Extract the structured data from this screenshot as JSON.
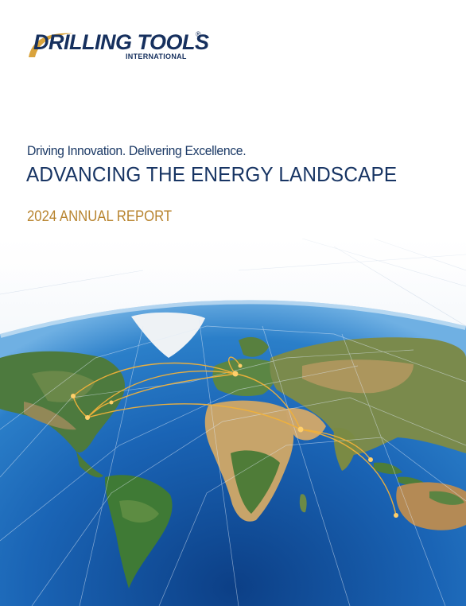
{
  "logo": {
    "name": "DRILLING TOOLS",
    "registered_mark": "®",
    "subtitle": "INTERNATIONAL",
    "brand_color": "#16305e",
    "accent_color": "#d4a23a"
  },
  "cover": {
    "tagline": "Driving Innovation. Delivering Excellence.",
    "headline": "ADVANCING THE ENERGY LANDSCAPE",
    "report_label": "2024 ANNUAL REPORT",
    "headline_color": "#173463",
    "report_color": "#b8842f"
  },
  "image": {
    "subject": "earth-globe-with-network",
    "route_color": "#f2b23a"
  }
}
